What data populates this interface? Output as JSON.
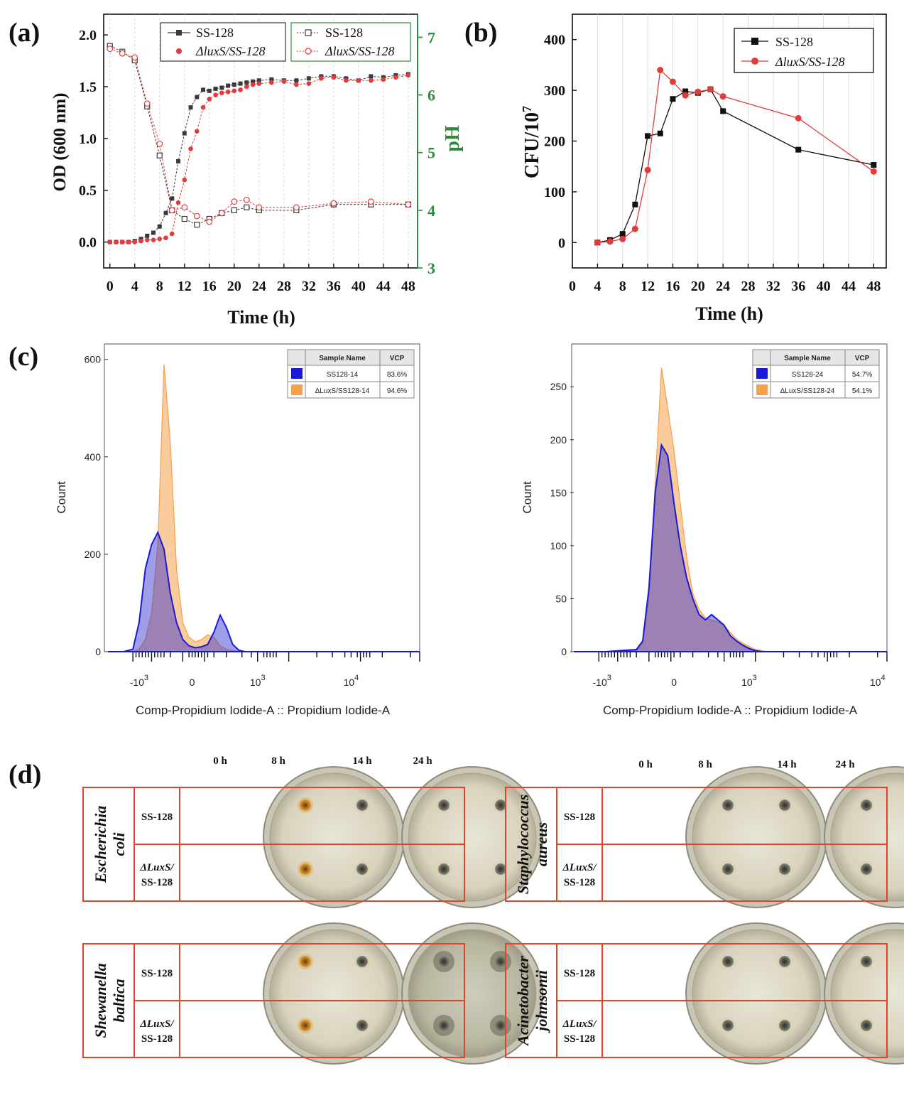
{
  "panels": {
    "a": "(a)",
    "b": "(b)",
    "c": "(c)",
    "d": "(d)"
  },
  "chart_data": [
    {
      "id": "a",
      "type": "line",
      "xlabel": "Time (h)",
      "ylabel": "OD (600 nm)",
      "ylabel_right": "pH",
      "xlim": [
        -1,
        49.5
      ],
      "ylim": [
        -0.25,
        2.2
      ],
      "ylim_right": [
        3,
        7.4
      ],
      "xticks": [
        0,
        4,
        8,
        12,
        16,
        20,
        24,
        28,
        32,
        36,
        40,
        44,
        48
      ],
      "yticks": [
        0.0,
        0.5,
        1.0,
        1.5,
        2.0
      ],
      "yticks_right": [
        3,
        4,
        5,
        6,
        7
      ],
      "legend_od": {
        "s1": "SS-128",
        "s2": "ΔluxS/SS-128"
      },
      "legend_ph": {
        "s1": "SS-128",
        "s2": "ΔluxS/SS-128"
      },
      "series": [
        {
          "name": "SS-128 OD",
          "axis": "left",
          "color": "#3a3a3a",
          "marker": "square-filled",
          "x": [
            0,
            1,
            2,
            3,
            4,
            5,
            6,
            7,
            8,
            9,
            10,
            11,
            12,
            13,
            14,
            15,
            16,
            17,
            18,
            19,
            20,
            21,
            22,
            23,
            24,
            26,
            28,
            30,
            32,
            34,
            36,
            38,
            40,
            42,
            44,
            46,
            48
          ],
          "y": [
            0,
            0,
            0,
            0,
            0.01,
            0.03,
            0.06,
            0.09,
            0.15,
            0.28,
            0.42,
            0.78,
            1.05,
            1.3,
            1.4,
            1.47,
            1.46,
            1.48,
            1.49,
            1.51,
            1.52,
            1.53,
            1.54,
            1.55,
            1.56,
            1.57,
            1.56,
            1.56,
            1.58,
            1.6,
            1.6,
            1.58,
            1.56,
            1.6,
            1.59,
            1.61,
            1.62
          ]
        },
        {
          "name": "ΔluxS/SS-128 OD",
          "axis": "left",
          "color": "#e03c3c",
          "marker": "circle-filled",
          "x": [
            0,
            1,
            2,
            3,
            4,
            5,
            6,
            7,
            8,
            9,
            10,
            11,
            12,
            13,
            14,
            15,
            16,
            17,
            18,
            19,
            20,
            21,
            22,
            23,
            24,
            26,
            28,
            30,
            32,
            34,
            36,
            38,
            40,
            42,
            44,
            46,
            48
          ],
          "y": [
            0,
            0,
            0,
            0,
            0,
            0.01,
            0.02,
            0.02,
            0.03,
            0.04,
            0.08,
            0.38,
            0.6,
            0.9,
            1.07,
            1.3,
            1.38,
            1.42,
            1.44,
            1.45,
            1.46,
            1.47,
            1.5,
            1.52,
            1.53,
            1.54,
            1.55,
            1.52,
            1.53,
            1.58,
            1.59,
            1.56,
            1.56,
            1.56,
            1.57,
            1.59,
            1.61
          ]
        },
        {
          "name": "SS-128 pH",
          "axis": "right",
          "color": "#3a3a3a",
          "marker": "square-open",
          "x": [
            0,
            2,
            4,
            6,
            8,
            10,
            12,
            14,
            16,
            18,
            20,
            22,
            24,
            30,
            36,
            42,
            48
          ],
          "y": [
            6.85,
            6.75,
            6.6,
            5.8,
            4.95,
            4.0,
            3.85,
            3.75,
            3.85,
            3.95,
            4.0,
            4.05,
            4.0,
            4.0,
            4.1,
            4.1,
            4.1
          ]
        },
        {
          "name": "ΔluxS/SS-128 pH",
          "axis": "right",
          "color": "#e03c3c",
          "marker": "circle-open",
          "x": [
            0,
            2,
            4,
            6,
            8,
            10,
            12,
            14,
            16,
            18,
            20,
            22,
            24,
            30,
            36,
            42,
            48
          ],
          "y": [
            6.8,
            6.72,
            6.65,
            5.85,
            5.15,
            4.0,
            4.05,
            3.9,
            3.8,
            3.95,
            4.15,
            4.18,
            4.05,
            4.05,
            4.12,
            4.15,
            4.1
          ]
        }
      ]
    },
    {
      "id": "b",
      "type": "line",
      "xlabel": "Time (h)",
      "ylabel": "CFU/10",
      "ylabel_sup": "7",
      "xlim": [
        0,
        50
      ],
      "ylim": [
        -50,
        450
      ],
      "xticks": [
        0,
        4,
        8,
        12,
        16,
        20,
        24,
        28,
        32,
        36,
        40,
        44,
        48
      ],
      "yticks": [
        0,
        100,
        200,
        300,
        400
      ],
      "legend": {
        "s1": "SS-128",
        "s2": "ΔluxS/SS-128"
      },
      "series": [
        {
          "name": "SS-128",
          "color": "#111111",
          "marker": "square",
          "x": [
            4,
            6,
            8,
            10,
            12,
            14,
            16,
            18,
            20,
            22,
            24,
            36,
            48
          ],
          "y": [
            0,
            5,
            17,
            75,
            210,
            215,
            283,
            298,
            295,
            302,
            259,
            183,
            153
          ]
        },
        {
          "name": "ΔluxS/SS-128",
          "color": "#e03c3c",
          "marker": "circle",
          "x": [
            4,
            6,
            8,
            10,
            12,
            14,
            16,
            18,
            20,
            22,
            24,
            36,
            48
          ],
          "y": [
            0,
            2,
            7,
            27,
            143,
            340,
            317,
            290,
            297,
            302,
            288,
            245,
            140
          ]
        }
      ]
    },
    {
      "id": "c-left",
      "type": "area",
      "xlabel": "Comp-Propidium Iodide-A :: Propidium Iodide-A",
      "ylabel": "Count",
      "ylim": [
        0,
        620
      ],
      "yticks": [
        0,
        200,
        400,
        600
      ],
      "xtick_labels": [
        "-10",
        "0",
        "10",
        "10"
      ],
      "xtick_sups": [
        "3",
        "",
        "3",
        "4"
      ],
      "table": {
        "h1": "Sample Name",
        "h2": "VCP",
        "rows": [
          {
            "name": "SS128-14",
            "vcp": "83.6%",
            "color": "#1a1ad6"
          },
          {
            "name": "ΔLuxS/SS128-14",
            "vcp": "94.6%",
            "color": "#f5a04a"
          }
        ]
      },
      "series": [
        {
          "name": "SS128-14",
          "color": "#1a1ad6",
          "x": [
            0,
            0.05,
            0.08,
            0.1,
            0.12,
            0.14,
            0.16,
            0.18,
            0.2,
            0.22,
            0.24,
            0.26,
            0.28,
            0.3,
            0.32,
            0.34,
            0.36,
            0.38,
            0.4,
            0.42,
            0.44,
            0.46,
            0.48,
            0.5,
            0.52,
            0.54,
            0.56,
            1
          ],
          "y": [
            0,
            0,
            5,
            60,
            170,
            220,
            245,
            210,
            120,
            60,
            25,
            12,
            8,
            10,
            15,
            40,
            75,
            50,
            15,
            3,
            0,
            0,
            0,
            0,
            0,
            0,
            0,
            0
          ]
        },
        {
          "name": "ΔLuxS/SS128-14",
          "color": "#f5a04a",
          "x": [
            0,
            0.05,
            0.08,
            0.1,
            0.12,
            0.14,
            0.16,
            0.18,
            0.2,
            0.22,
            0.24,
            0.26,
            0.28,
            0.3,
            0.32,
            0.34,
            0.36,
            0.38,
            0.4,
            0.42,
            0.44,
            0.46,
            0.48,
            0.5,
            0.52,
            0.54,
            0.56,
            1
          ],
          "y": [
            0,
            0,
            0,
            5,
            25,
            80,
            220,
            590,
            430,
            170,
            60,
            30,
            20,
            25,
            35,
            30,
            12,
            5,
            2,
            0,
            0,
            0,
            0,
            0,
            0,
            0,
            0,
            0
          ]
        }
      ]
    },
    {
      "id": "c-right",
      "type": "area",
      "xlabel": "Comp-Propidium Iodide-A :: Propidium Iodide-A",
      "ylabel": "Count",
      "ylim": [
        0,
        285
      ],
      "yticks": [
        0,
        50,
        100,
        150,
        200,
        250
      ],
      "xtick_labels": [
        "-10",
        "0",
        "10",
        "10"
      ],
      "xtick_sups": [
        "3",
        "",
        "3",
        "4"
      ],
      "table": {
        "h1": "Sample Name",
        "h2": "VCP",
        "rows": [
          {
            "name": "SS128-24",
            "vcp": "54.7%",
            "color": "#1a1ad6"
          },
          {
            "name": "ΔLuxS/SS128-24",
            "vcp": "54.1%",
            "color": "#f5a04a"
          }
        ]
      },
      "series": [
        {
          "name": "SS128-24",
          "color": "#1a1ad6",
          "x": [
            0,
            0.1,
            0.2,
            0.22,
            0.24,
            0.26,
            0.28,
            0.3,
            0.32,
            0.34,
            0.36,
            0.38,
            0.4,
            0.42,
            0.44,
            0.46,
            0.48,
            0.5,
            0.52,
            0.54,
            0.56,
            0.58,
            0.6,
            0.62,
            0.66,
            1
          ],
          "y": [
            0,
            0,
            2,
            10,
            60,
            150,
            195,
            185,
            140,
            100,
            70,
            50,
            35,
            30,
            35,
            30,
            25,
            15,
            10,
            6,
            3,
            1,
            0,
            0,
            0,
            0
          ]
        },
        {
          "name": "ΔLuxS/SS128-24",
          "color": "#f5a04a",
          "x": [
            0,
            0.1,
            0.2,
            0.22,
            0.24,
            0.26,
            0.28,
            0.3,
            0.32,
            0.34,
            0.36,
            0.38,
            0.4,
            0.42,
            0.44,
            0.46,
            0.48,
            0.5,
            0.52,
            0.54,
            0.56,
            0.58,
            0.6,
            0.62,
            0.66,
            1
          ],
          "y": [
            0,
            0,
            1,
            8,
            50,
            160,
            268,
            230,
            190,
            140,
            90,
            55,
            40,
            32,
            30,
            28,
            25,
            18,
            12,
            8,
            5,
            2,
            1,
            0,
            0,
            0
          ]
        }
      ]
    }
  ],
  "plates": {
    "time_labels": [
      "0 h",
      "8 h",
      "14 h",
      "24 h"
    ],
    "row_ss": "SS-128",
    "row_luxs_1": "ΔLuxS/",
    "row_luxs_2": "SS-128",
    "organisms": [
      {
        "line1": "Escherichia",
        "line2": "coli"
      },
      {
        "line1": "Staphylococcus",
        "line2": "aureus"
      },
      {
        "line1": "Shewanella",
        "line2": "baltica"
      },
      {
        "line1": "Acinetobacter",
        "line2": "johnsonii"
      }
    ]
  }
}
